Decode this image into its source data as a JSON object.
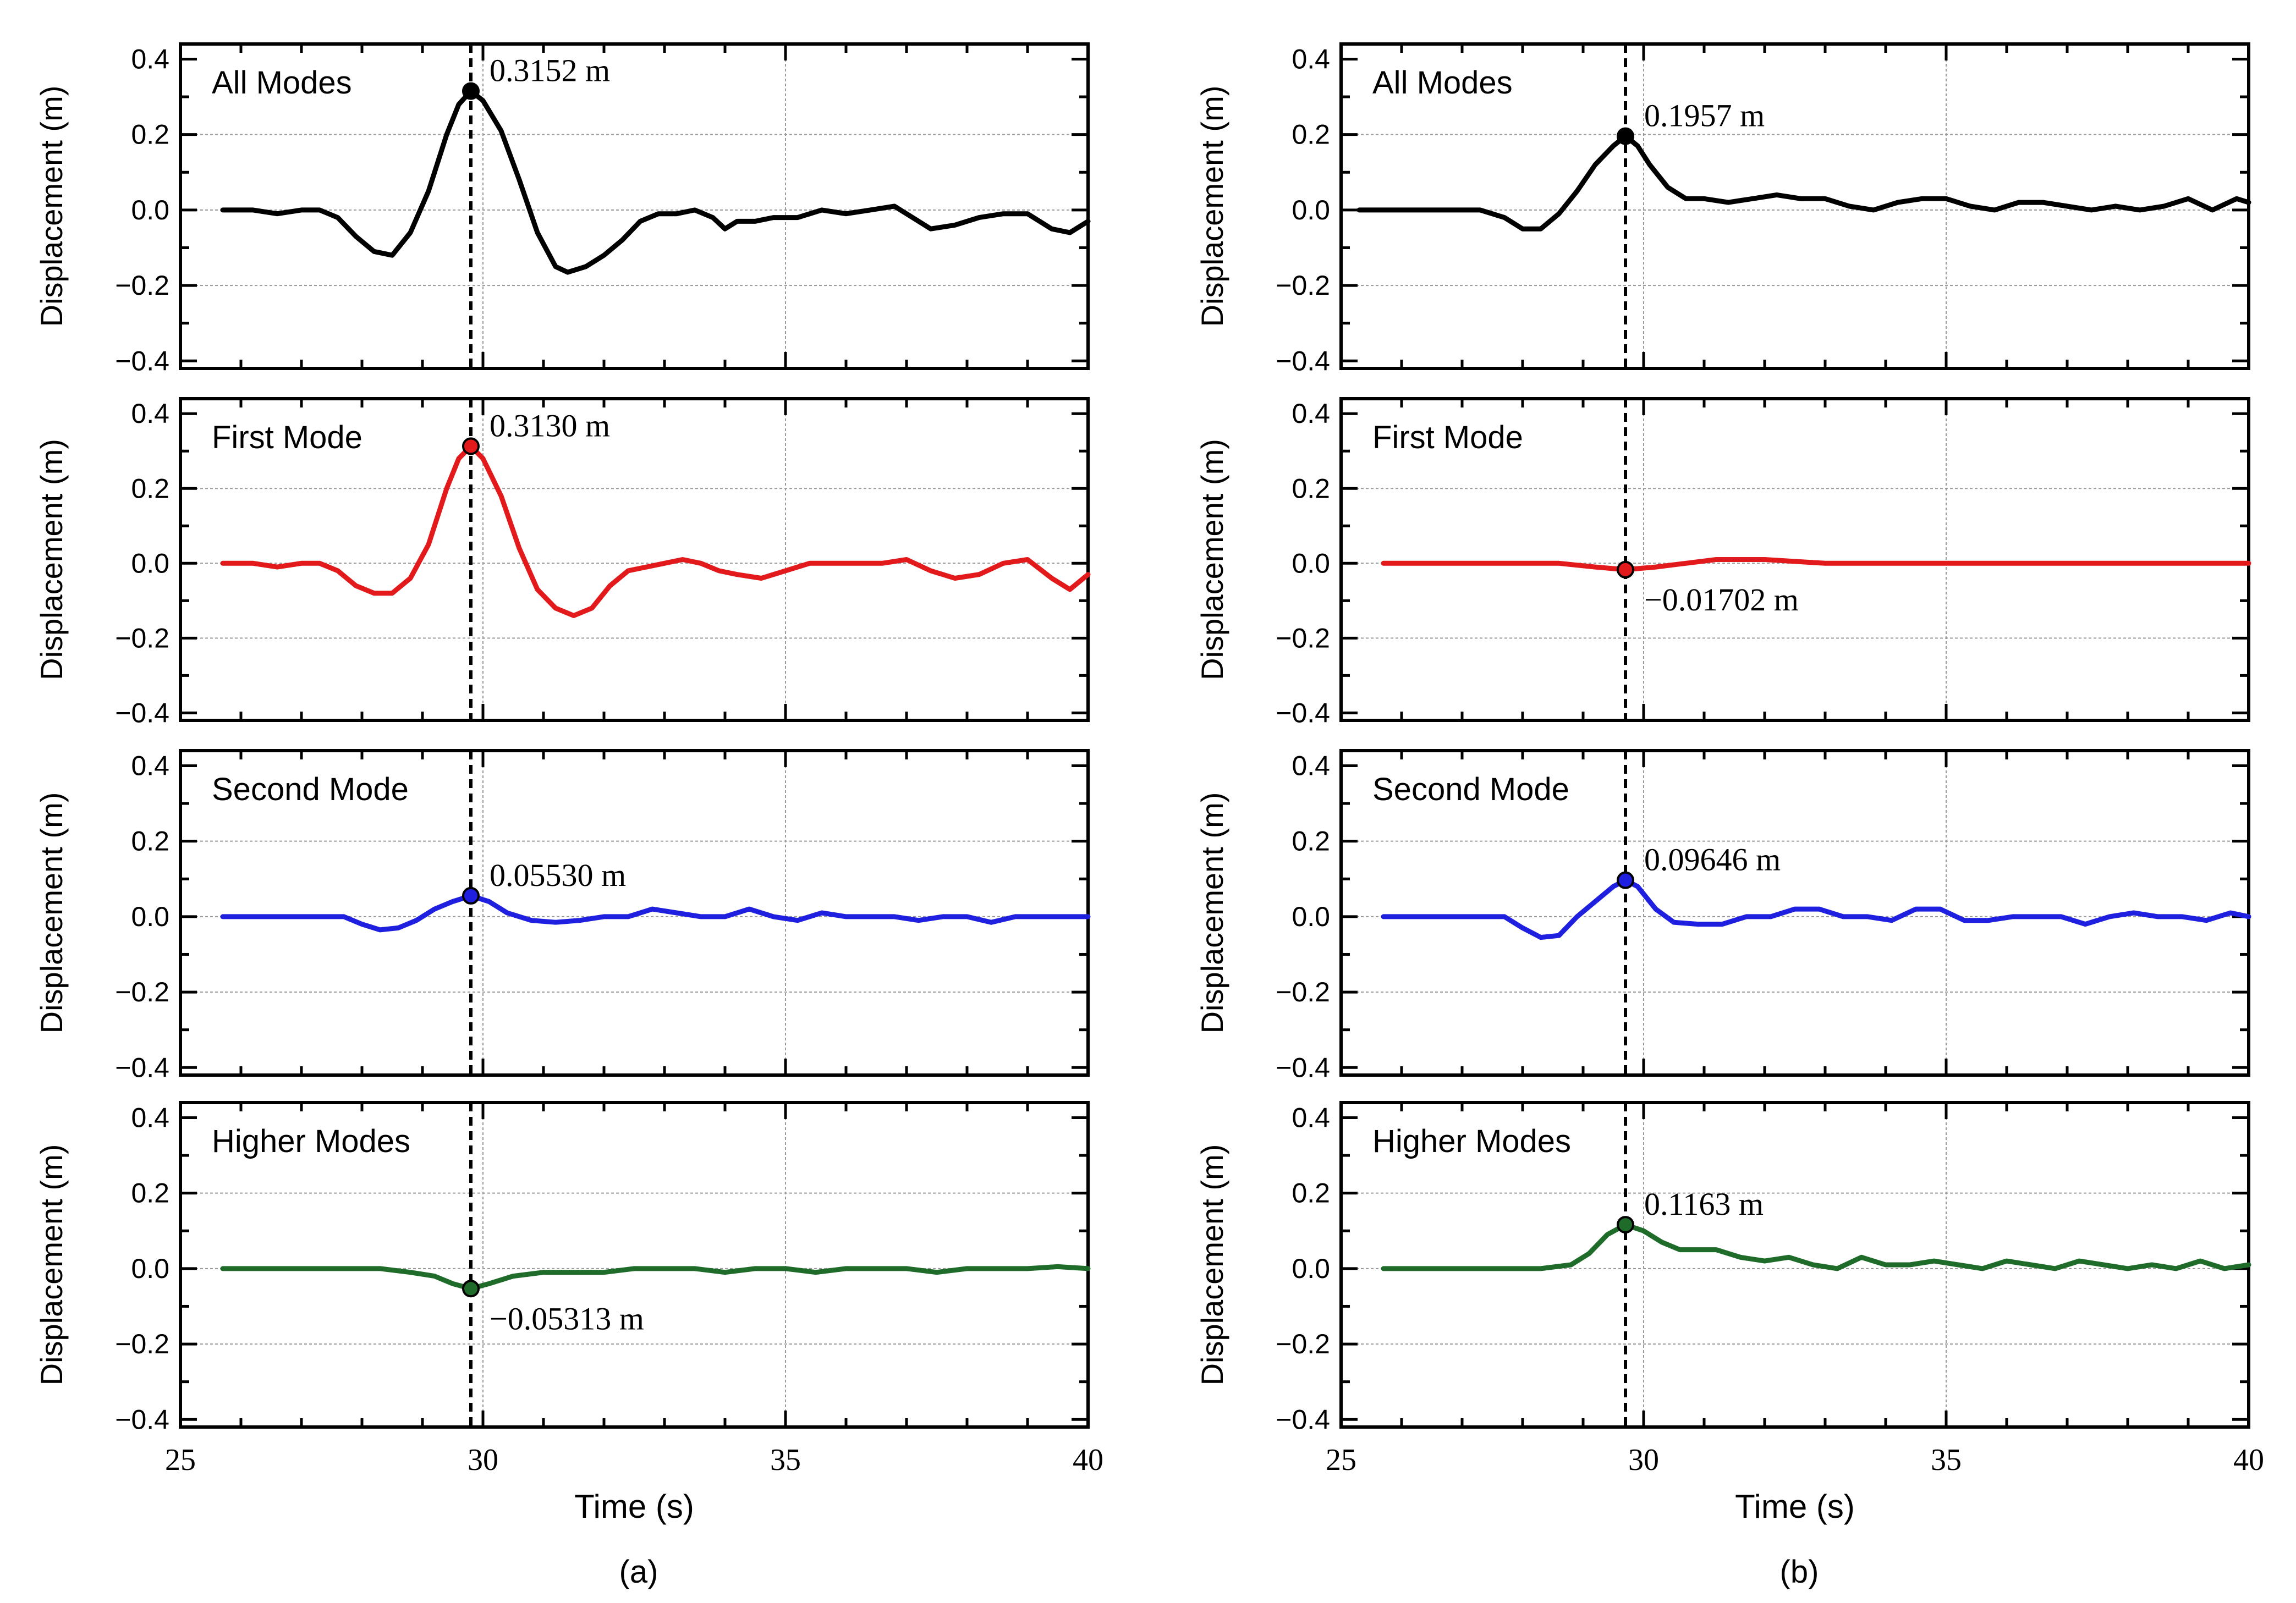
{
  "figure": {
    "x_label": "Time (s)",
    "y_label": "Displacement (m)",
    "x_ticks": [
      "25",
      "30",
      "35",
      "40"
    ],
    "y_ticks": [
      "0.4",
      "0.2",
      "0.0",
      "−0.2",
      "−0.4"
    ],
    "colors": {
      "all_modes": "#000000",
      "first_mode": "#e31a1c",
      "second_mode": "#1f1fe0",
      "higher_modes": "#1f6b2a"
    }
  },
  "chart_data": [
    {
      "type": "line",
      "caption": "(a)",
      "xlabel": "Time (s)",
      "ylabel": "Displacement (m)",
      "xlim": [
        25,
        40
      ],
      "ylim": [
        -0.42,
        0.44
      ],
      "grid": true,
      "peak_time": 29.8,
      "panels": [
        {
          "title": "All Modes",
          "color": "#000000",
          "annotation": "0.3152 m",
          "peak_value": 0.3152,
          "series": {
            "x": [
              25.7,
              26.2,
              26.6,
              27.0,
              27.3,
              27.6,
              27.9,
              28.2,
              28.5,
              28.8,
              29.1,
              29.4,
              29.6,
              29.8,
              30.0,
              30.3,
              30.6,
              30.9,
              31.2,
              31.4,
              31.7,
              32.0,
              32.3,
              32.6,
              32.9,
              33.2,
              33.5,
              33.8,
              34.0,
              34.2,
              34.5,
              34.8,
              35.2,
              35.6,
              36.0,
              36.4,
              36.8,
              37.1,
              37.4,
              37.8,
              38.2,
              38.6,
              39.0,
              39.4,
              39.7,
              40.0
            ],
            "y": [
              0.0,
              0.0,
              -0.01,
              0.0,
              0.0,
              -0.02,
              -0.07,
              -0.11,
              -0.12,
              -0.06,
              0.05,
              0.2,
              0.28,
              0.3152,
              0.29,
              0.21,
              0.08,
              -0.06,
              -0.15,
              -0.165,
              -0.15,
              -0.12,
              -0.08,
              -0.03,
              -0.01,
              -0.01,
              0.0,
              -0.02,
              -0.05,
              -0.03,
              -0.03,
              -0.02,
              -0.02,
              0.0,
              -0.01,
              0.0,
              0.01,
              -0.02,
              -0.05,
              -0.04,
              -0.02,
              -0.01,
              -0.01,
              -0.05,
              -0.06,
              -0.03
            ]
          }
        },
        {
          "title": "First Mode",
          "color": "#e31a1c",
          "annotation": "0.3130 m",
          "peak_value": 0.313,
          "series": {
            "x": [
              25.7,
              26.2,
              26.6,
              27.0,
              27.3,
              27.6,
              27.9,
              28.2,
              28.5,
              28.8,
              29.1,
              29.4,
              29.6,
              29.8,
              30.0,
              30.3,
              30.6,
              30.9,
              31.2,
              31.5,
              31.8,
              32.1,
              32.4,
              32.7,
              33.0,
              33.3,
              33.6,
              33.9,
              34.2,
              34.6,
              35.0,
              35.4,
              35.8,
              36.2,
              36.6,
              37.0,
              37.4,
              37.8,
              38.2,
              38.6,
              39.0,
              39.4,
              39.7,
              40.0
            ],
            "y": [
              0.0,
              0.0,
              -0.01,
              0.0,
              0.0,
              -0.02,
              -0.06,
              -0.08,
              -0.08,
              -0.04,
              0.05,
              0.2,
              0.28,
              0.313,
              0.28,
              0.18,
              0.04,
              -0.07,
              -0.12,
              -0.14,
              -0.12,
              -0.06,
              -0.02,
              -0.01,
              0.0,
              0.01,
              0.0,
              -0.02,
              -0.03,
              -0.04,
              -0.02,
              0.0,
              0.0,
              0.0,
              0.0,
              0.01,
              -0.02,
              -0.04,
              -0.03,
              0.0,
              0.01,
              -0.04,
              -0.07,
              -0.03
            ]
          }
        },
        {
          "title": "Second Mode",
          "color": "#1f1fe0",
          "annotation": "0.05530 m",
          "peak_value": 0.0553,
          "series": {
            "x": [
              25.7,
              26.3,
              26.8,
              27.3,
              27.7,
              28.0,
              28.3,
              28.6,
              28.9,
              29.2,
              29.5,
              29.8,
              30.1,
              30.4,
              30.8,
              31.2,
              31.6,
              32.0,
              32.4,
              32.8,
              33.2,
              33.6,
              34.0,
              34.4,
              34.8,
              35.2,
              35.6,
              36.0,
              36.4,
              36.8,
              37.2,
              37.6,
              38.0,
              38.4,
              38.8,
              39.2,
              39.6,
              40.0
            ],
            "y": [
              0.0,
              0.0,
              0.0,
              0.0,
              0.0,
              -0.02,
              -0.035,
              -0.03,
              -0.01,
              0.02,
              0.04,
              0.0553,
              0.04,
              0.01,
              -0.01,
              -0.015,
              -0.01,
              0.0,
              0.0,
              0.02,
              0.01,
              0.0,
              0.0,
              0.02,
              0.0,
              -0.01,
              0.01,
              0.0,
              0.0,
              0.0,
              -0.01,
              0.0,
              0.0,
              -0.015,
              0.0,
              0.0,
              0.0,
              0.0
            ]
          }
        },
        {
          "title": "Higher Modes",
          "color": "#1f6b2a",
          "annotation": "−0.05313 m",
          "peak_value": -0.05313,
          "series": {
            "x": [
              25.7,
              26.3,
              26.8,
              27.3,
              27.8,
              28.3,
              28.8,
              29.2,
              29.5,
              29.8,
              30.1,
              30.5,
              31.0,
              31.5,
              32.0,
              32.5,
              33.0,
              33.5,
              34.0,
              34.5,
              35.0,
              35.5,
              36.0,
              36.5,
              37.0,
              37.5,
              38.0,
              38.5,
              39.0,
              39.5,
              40.0
            ],
            "y": [
              0.0,
              0.0,
              0.0,
              0.0,
              0.0,
              0.0,
              -0.01,
              -0.02,
              -0.04,
              -0.05313,
              -0.04,
              -0.02,
              -0.01,
              -0.01,
              -0.01,
              0.0,
              0.0,
              0.0,
              -0.01,
              0.0,
              0.0,
              -0.01,
              0.0,
              0.0,
              0.0,
              -0.01,
              0.0,
              0.0,
              0.0,
              0.005,
              0.0
            ]
          }
        }
      ]
    },
    {
      "type": "line",
      "caption": "(b)",
      "xlabel": "Time (s)",
      "ylabel": "Displacement (m)",
      "xlim": [
        25,
        40
      ],
      "ylim": [
        -0.42,
        0.44
      ],
      "grid": true,
      "peak_time": 29.7,
      "panels": [
        {
          "title": "All Modes",
          "color": "#000000",
          "annotation": "0.1957 m",
          "peak_value": 0.1957,
          "series": {
            "x": [
              25.3,
              25.8,
              26.3,
              26.8,
              27.3,
              27.7,
              28.0,
              28.3,
              28.6,
              28.9,
              29.2,
              29.5,
              29.7,
              29.9,
              30.1,
              30.4,
              30.7,
              31.0,
              31.4,
              31.8,
              32.2,
              32.6,
              33.0,
              33.4,
              33.8,
              34.2,
              34.6,
              35.0,
              35.4,
              35.8,
              36.2,
              36.6,
              37.0,
              37.4,
              37.8,
              38.2,
              38.6,
              39.0,
              39.4,
              39.8,
              40.0
            ],
            "y": [
              0.0,
              0.0,
              0.0,
              0.0,
              0.0,
              -0.02,
              -0.05,
              -0.05,
              -0.01,
              0.05,
              0.12,
              0.17,
              0.1957,
              0.17,
              0.12,
              0.06,
              0.03,
              0.03,
              0.02,
              0.03,
              0.04,
              0.03,
              0.03,
              0.01,
              0.0,
              0.02,
              0.03,
              0.03,
              0.01,
              0.0,
              0.02,
              0.02,
              0.01,
              0.0,
              0.01,
              0.0,
              0.01,
              0.03,
              0.0,
              0.03,
              0.02
            ]
          }
        },
        {
          "title": "First Mode",
          "color": "#e31a1c",
          "annotation": "−0.01702 m",
          "peak_value": -0.01702,
          "series": {
            "x": [
              25.7,
              26.5,
              27.3,
              28.0,
              28.6,
              29.2,
              29.7,
              30.2,
              30.7,
              31.2,
              32.0,
              33.0,
              34.0,
              35.0,
              36.0,
              37.0,
              38.0,
              39.0,
              40.0
            ],
            "y": [
              0.0,
              0.0,
              0.0,
              0.0,
              0.0,
              -0.01,
              -0.01702,
              -0.01,
              0.0,
              0.01,
              0.01,
              0.0,
              0.0,
              0.0,
              0.0,
              0.0,
              0.0,
              0.0,
              0.0
            ]
          }
        },
        {
          "title": "Second Mode",
          "color": "#1f1fe0",
          "annotation": "0.09646 m",
          "peak_value": 0.09646,
          "series": {
            "x": [
              25.7,
              26.3,
              26.8,
              27.3,
              27.7,
              28.0,
              28.3,
              28.6,
              28.9,
              29.2,
              29.5,
              29.7,
              29.9,
              30.2,
              30.5,
              30.9,
              31.3,
              31.7,
              32.1,
              32.5,
              32.9,
              33.3,
              33.7,
              34.1,
              34.5,
              34.9,
              35.3,
              35.7,
              36.1,
              36.5,
              36.9,
              37.3,
              37.7,
              38.1,
              38.5,
              38.9,
              39.3,
              39.7,
              40.0
            ],
            "y": [
              0.0,
              0.0,
              0.0,
              0.0,
              0.0,
              -0.03,
              -0.055,
              -0.05,
              0.0,
              0.04,
              0.08,
              0.09646,
              0.08,
              0.02,
              -0.015,
              -0.02,
              -0.02,
              0.0,
              0.0,
              0.02,
              0.02,
              0.0,
              0.0,
              -0.01,
              0.02,
              0.02,
              -0.01,
              -0.01,
              0.0,
              0.0,
              0.0,
              -0.02,
              0.0,
              0.01,
              0.0,
              0.0,
              -0.01,
              0.01,
              0.0
            ]
          }
        },
        {
          "title": "Higher Modes",
          "color": "#1f6b2a",
          "annotation": "0.1163 m",
          "peak_value": 0.1163,
          "series": {
            "x": [
              25.7,
              26.3,
              26.8,
              27.3,
              27.8,
              28.3,
              28.8,
              29.1,
              29.4,
              29.7,
              30.0,
              30.3,
              30.6,
              30.9,
              31.2,
              31.6,
              32.0,
              32.4,
              32.8,
              33.2,
              33.6,
              34.0,
              34.4,
              34.8,
              35.2,
              35.6,
              36.0,
              36.4,
              36.8,
              37.2,
              37.6,
              38.0,
              38.4,
              38.8,
              39.2,
              39.6,
              40.0
            ],
            "y": [
              0.0,
              0.0,
              0.0,
              0.0,
              0.0,
              0.0,
              0.01,
              0.04,
              0.09,
              0.1163,
              0.1,
              0.07,
              0.05,
              0.05,
              0.05,
              0.03,
              0.02,
              0.03,
              0.01,
              0.0,
              0.03,
              0.01,
              0.01,
              0.02,
              0.01,
              0.0,
              0.02,
              0.01,
              0.0,
              0.02,
              0.01,
              0.0,
              0.01,
              0.0,
              0.02,
              0.0,
              0.01
            ]
          }
        }
      ]
    }
  ]
}
